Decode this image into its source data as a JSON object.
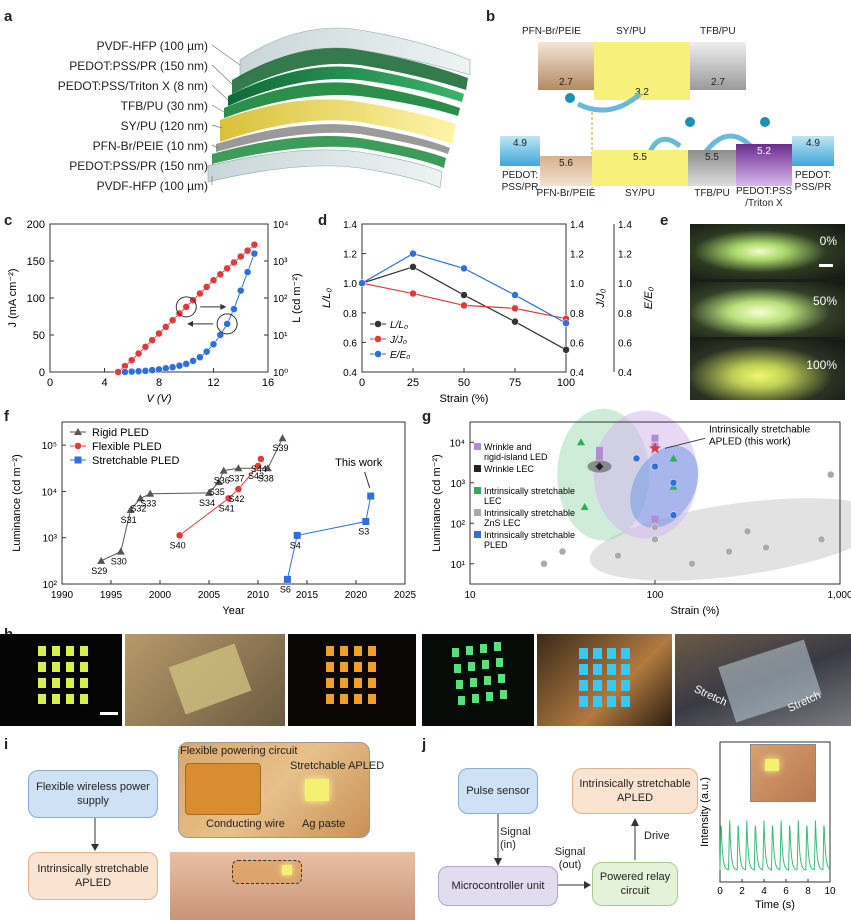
{
  "panels": {
    "a": "a",
    "b": "b",
    "c": "c",
    "d": "d",
    "e": "e",
    "f": "f",
    "g": "g",
    "h": "h",
    "i": "i",
    "j": "j"
  },
  "panel_a": {
    "layers": [
      "PVDF-HFP (100 µm)",
      "PEDOT:PSS/PR (150 nm)",
      "PEDOT:PSS/Triton X (8 nm)",
      "TFB/PU (30 nm)",
      "SY/PU (120 nm)",
      "PFN-Br/PEIE (10 nm)",
      "PEDOT:PSS/PR (150 nm)",
      "PVDF-HFP (100 µm)"
    ]
  },
  "panel_b": {
    "top_labels": [
      "PFN-Br/PEIE",
      "SY/PU",
      "TFB/PU"
    ],
    "top_values": [
      "2.7",
      "3.2",
      "2.7"
    ],
    "bottom_values": [
      "4.9",
      "5.6",
      "5.5",
      "5.5",
      "5.2",
      "4.9"
    ],
    "bottom_labels": [
      "PEDOT:\nPSS/PR",
      "PFN-Br/PEIE",
      "SY/PU",
      "TFB/PU",
      "PEDOT:PSS\n/Triton X",
      "PEDOT:\nPSS/PR"
    ]
  },
  "panel_e": {
    "labels": [
      "0%",
      "50%",
      "100%"
    ]
  },
  "panel_h": {
    "stretch_labels": [
      "Stretch",
      "Stretch"
    ]
  },
  "panel_i": {
    "box1": "Flexible wireless power supply",
    "box2": "Intrinsically stretchable APLED",
    "photo_labels": [
      "Flexible powering circuit",
      "Stretchable APLED",
      "Conducting wire",
      "Ag paste"
    ]
  },
  "panel_j": {
    "boxes": [
      "Pulse sensor",
      "Microcontroller unit",
      "Powered relay circuit",
      "Intrinsically stretchable APLED"
    ],
    "arrow_labels": [
      "Signal (in)",
      "Signal (out)",
      "Drive"
    ]
  },
  "colors": {
    "red": "#e03a3a",
    "blue": "#2f6fdc",
    "black": "#333333",
    "purple": "#b48ad8",
    "green": "#2fae5a",
    "gray": "#aaaaaa"
  },
  "chart_data": [
    {
      "id": "c",
      "type": "line",
      "xlabel": "V (V)",
      "ylabel_left": "J (mA cm⁻²)",
      "ylabel_right": "L (cd m⁻²)",
      "xlim": [
        0,
        16
      ],
      "ylim_left": [
        0,
        200
      ],
      "ylim_right_log": [
        0,
        4
      ],
      "xticks": [
        "0",
        "4",
        "8",
        "12",
        "16"
      ],
      "yticks_left": [
        "0",
        "50",
        "100",
        "150",
        "200"
      ],
      "yticks_right": [
        "10⁰",
        "10¹",
        "10²",
        "10³",
        "10⁴"
      ],
      "series": [
        {
          "name": "J",
          "axis": "left",
          "color": "#e03a3a",
          "x": [
            5,
            5.5,
            6,
            6.5,
            7,
            7.5,
            8,
            8.5,
            9,
            9.5,
            10,
            10.5,
            11,
            11.5,
            12,
            12.5,
            13,
            13.5,
            14,
            14.5,
            15
          ],
          "y": [
            0,
            8,
            16,
            25,
            34,
            43,
            52,
            61,
            70,
            79,
            88,
            97,
            106,
            115,
            124,
            132,
            140,
            148,
            156,
            164,
            172
          ]
        },
        {
          "name": "L",
          "axis": "right",
          "color": "#2f6fdc",
          "x": [
            5.5,
            6,
            6.5,
            7,
            7.5,
            8,
            8.5,
            9,
            9.5,
            10,
            10.5,
            11,
            11.5,
            12,
            12.5,
            13,
            13.5,
            14,
            14.5,
            15
          ],
          "y": [
            0,
            0.01,
            0.02,
            0.03,
            0.05,
            0.07,
            0.1,
            0.13,
            0.17,
            0.22,
            0.3,
            0.4,
            0.55,
            0.75,
            1.0,
            1.3,
            1.7,
            2.2,
            2.7,
            3.2
          ]
        }
      ]
    },
    {
      "id": "d",
      "type": "line",
      "xlabel": "Strain (%)",
      "ylabel_left": "L/L₀",
      "ylabel_right1": "J/J₀",
      "ylabel_right2": "E/E₀",
      "xlim": [
        0,
        100
      ],
      "ylim": [
        0.4,
        1.4
      ],
      "xticks": [
        "0",
        "25",
        "50",
        "75",
        "100"
      ],
      "yticks": [
        "0.4",
        "0.6",
        "0.8",
        "1.0",
        "1.2",
        "1.4"
      ],
      "legend": [
        "L/L₀",
        "J/J₀",
        "E/E₀"
      ],
      "series": [
        {
          "name": "L/L₀",
          "color": "#333333",
          "x": [
            0,
            25,
            50,
            75,
            100
          ],
          "y": [
            1.0,
            1.11,
            0.92,
            0.74,
            0.55
          ]
        },
        {
          "name": "J/J₀",
          "color": "#e03a3a",
          "x": [
            0,
            25,
            50,
            75,
            100
          ],
          "y": [
            1.0,
            0.93,
            0.85,
            0.83,
            0.76
          ]
        },
        {
          "name": "E/E₀",
          "color": "#2f6fdc",
          "x": [
            0,
            25,
            50,
            75,
            100
          ],
          "y": [
            1.0,
            1.2,
            1.1,
            0.92,
            0.73
          ]
        }
      ]
    },
    {
      "id": "f",
      "type": "scatter-line",
      "xlabel": "Year",
      "ylabel": "Luminance (cd m⁻²)",
      "xlim": [
        1990,
        2025
      ],
      "ylim_log": [
        2,
        5.5
      ],
      "xticks": [
        "1990",
        "1995",
        "2000",
        "2005",
        "2010",
        "2015",
        "2020",
        "2025"
      ],
      "yticks": [
        "10²",
        "10³",
        "10⁴",
        "10⁵"
      ],
      "legend": [
        "Rigid PLED",
        "Flexible PLED",
        "Stretchable PLED"
      ],
      "annotation": "This work",
      "series": [
        {
          "name": "Rigid PLED",
          "color": "#555555",
          "marker": "triangle",
          "x": [
            1994,
            1996,
            1997,
            1998,
            1999,
            2005,
            2006,
            2006.5,
            2008,
            2011,
            2012.5
          ],
          "y": [
            2.5,
            2.7,
            3.6,
            3.85,
            3.95,
            3.97,
            4.2,
            4.45,
            4.5,
            4.5,
            5.15
          ],
          "labels": [
            "S29",
            "S30",
            "S31",
            "S32",
            "S33",
            "S34",
            "S35",
            "S36",
            "S37",
            "S38",
            "S39"
          ]
        },
        {
          "name": "Flexible PLED",
          "color": "#e03a3a",
          "marker": "circle",
          "x": [
            2002,
            2007,
            2008,
            2010,
            2010.3
          ],
          "y": [
            3.05,
            3.85,
            4.05,
            4.55,
            4.7
          ],
          "labels": [
            "S40",
            "S41",
            "S42",
            "S43",
            "S44"
          ]
        },
        {
          "name": "Stretchable PLED",
          "color": "#2f6fdc",
          "marker": "square",
          "x": [
            2013,
            2014,
            2021,
            2021.5
          ],
          "y": [
            2.1,
            3.05,
            3.35,
            3.9
          ],
          "labels": [
            "S6",
            "S4",
            "S3",
            ""
          ]
        }
      ]
    },
    {
      "id": "g",
      "type": "scatter",
      "xlabel": "Strain (%)",
      "ylabel": "Luminance (cd m⁻²)",
      "xlim_log": [
        1,
        3
      ],
      "ylim_log": [
        0.5,
        4.5
      ],
      "xticks": [
        "10",
        "100",
        "1,000"
      ],
      "yticks": [
        "10¹",
        "10²",
        "10³",
        "10⁴"
      ],
      "annotation": "Intrinsically stretchable APLED (this work)",
      "legend": [
        "Wrinkle and rigid-island LED",
        "Wrinkle LEC",
        "Intrinsically stretchable LEC",
        "Intrinsically stretchable ZnS LEC",
        "Intrinsically stretchable PLED"
      ],
      "series": [
        {
          "name": "Wrinkle and rigid-island LED",
          "color": "#b48ad8",
          "x": [
            1.7,
            1.7,
            2.0,
            2.0,
            2.0
          ],
          "y": [
            3.8,
            3.65,
            3.9,
            4.1,
            2.1
          ]
        },
        {
          "name": "Wrinkle LEC",
          "color": "#222222",
          "x": [
            1.7
          ],
          "y": [
            3.4
          ]
        },
        {
          "name": "Intrinsically stretchable LEC",
          "color": "#2fae5a",
          "x": [
            1.6,
            1.62,
            2.1,
            2.1
          ],
          "y": [
            4.0,
            2.4,
            3.6,
            2.9
          ]
        },
        {
          "name": "Intrinsically stretchable ZnS LEC",
          "color": "#aaaaaa",
          "x": [
            1.4,
            1.5,
            1.8,
            2.0,
            2.2,
            2.4,
            2.6,
            2.9,
            2.95,
            2.0,
            2.5
          ],
          "y": [
            1.0,
            1.3,
            1.2,
            1.6,
            1.0,
            1.3,
            1.4,
            1.6,
            3.2,
            1.9,
            1.8
          ]
        },
        {
          "name": "Intrinsically stretchable PLED",
          "color": "#2f6fdc",
          "x": [
            1.9,
            2.0,
            2.1,
            2.1
          ],
          "y": [
            3.6,
            3.4,
            2.2,
            3.0
          ]
        },
        {
          "name": "This work",
          "color": "#e03a3a",
          "marker": "star",
          "x": [
            2.0
          ],
          "y": [
            3.85
          ]
        }
      ]
    },
    {
      "id": "j",
      "type": "line",
      "xlabel": "Time (s)",
      "ylabel": "Intensity (a.u.)",
      "xlim": [
        0,
        10
      ],
      "xticks": [
        "0",
        "2",
        "4",
        "6",
        "8",
        "10"
      ],
      "series": [
        {
          "name": "Intensity",
          "color": "#3dbb7a",
          "period_s": 0.78
        }
      ]
    }
  ]
}
